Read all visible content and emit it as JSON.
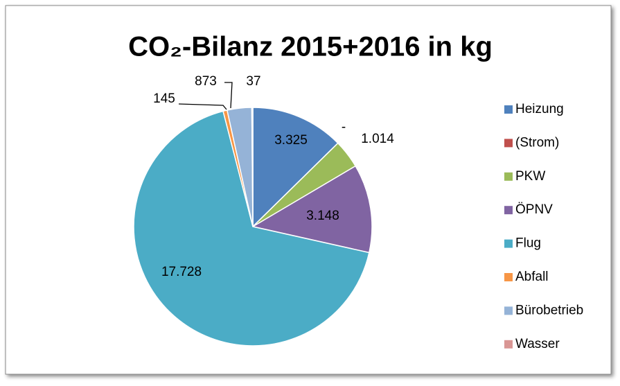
{
  "chart_data": {
    "type": "pie",
    "title": "CO₂-Bilanz 2015+2016 in kg",
    "categories": [
      "Heizung",
      "(Strom)",
      "PKW",
      "ÖPNV",
      "Flug",
      "Abfall",
      "Bürobetrieb",
      "Wasser"
    ],
    "values": [
      3325,
      0,
      1014,
      3148,
      17728,
      145,
      873,
      37
    ],
    "value_labels": [
      "3.325",
      "-",
      "1.014",
      "3.148",
      "17.728",
      "145",
      "873",
      "37"
    ],
    "colors": [
      "#4f81bd",
      "#c0504d",
      "#9bbb59",
      "#8064a2",
      "#4bacc6",
      "#f79646",
      "#95b3d7",
      "#d99694"
    ],
    "legend": "right"
  }
}
